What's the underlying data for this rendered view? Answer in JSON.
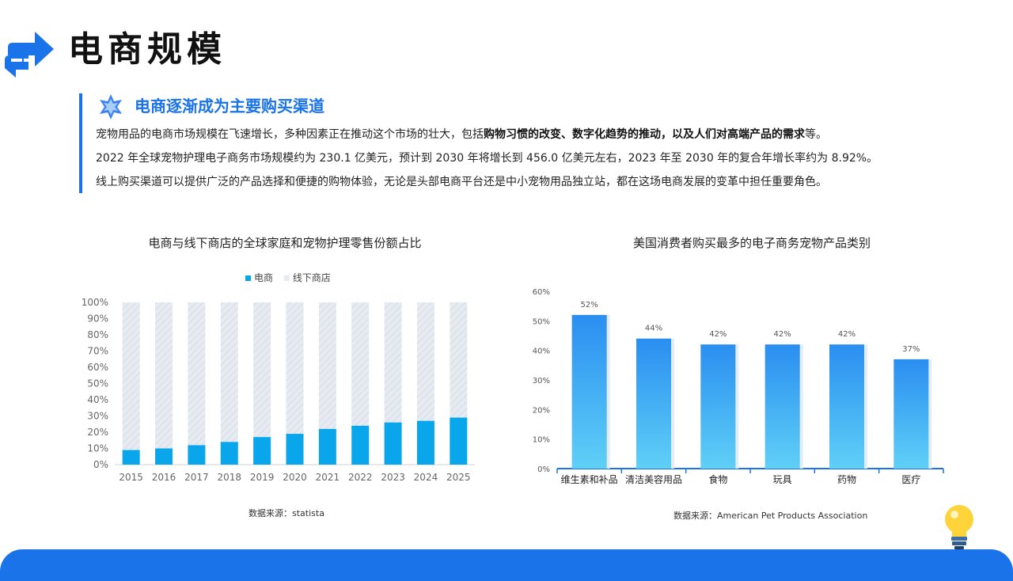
{
  "header": {
    "title": "电商规模"
  },
  "section": {
    "heading": "电商逐渐成为主要购买渠道",
    "p1_pre": "宠物用品的电商市场规模在飞速增长，多种因素正在推动这个市场的壮大，包括",
    "p1_bold": "购物习惯的改变、数字化趋势的推动，以及人们对高端产品的需求",
    "p1_post": "等。",
    "p2": "2022 年全球宠物护理电子商务市场规模约为 230.1 亿美元，预计到 2030 年将增长到 456.0 亿美元左右，2023 年至 2030 年的复合年增长率约为 8.92%。",
    "p3": "线上购买渠道可以提供广泛的产品选择和便捷的购物体验，无论是头部电商平台还是中小宠物用品独立站，都在这场电商发展的变革中担任重要角色。"
  },
  "colors": {
    "accent": "#1a73e8",
    "ecommerce": "#0aa6ec",
    "offline": "#e6ebf2",
    "bar_top": "#2a8ef0",
    "bar_bottom": "#5fd0f7"
  },
  "chart_data": [
    {
      "type": "bar",
      "stacked": true,
      "title": "电商与线下商店的全球家庭和宠物护理零售份额占比",
      "categories": [
        "2015",
        "2016",
        "2017",
        "2018",
        "2019",
        "2020",
        "2021",
        "2022",
        "2023",
        "2024",
        "2025"
      ],
      "series": [
        {
          "name": "电商",
          "values": [
            9,
            10,
            12,
            14,
            17,
            19,
            22,
            24,
            26,
            27,
            29
          ]
        },
        {
          "name": "线下商店",
          "values": [
            91,
            90,
            88,
            86,
            83,
            81,
            78,
            76,
            74,
            73,
            71
          ]
        }
      ],
      "ylim": [
        0,
        100
      ],
      "yticks": [
        "0%",
        "10%",
        "20%",
        "30%",
        "40%",
        "50%",
        "60%",
        "70%",
        "80%",
        "90%",
        "100%"
      ],
      "legend": "top",
      "grid": false,
      "source": "数据来源：statista"
    },
    {
      "type": "bar",
      "title": "美国消费者购买最多的电子商务宠物产品类别",
      "categories": [
        "维生素和补品",
        "清洁美容用品",
        "食物",
        "玩具",
        "药物",
        "医疗"
      ],
      "values": [
        52,
        44,
        42,
        42,
        42,
        37
      ],
      "labels": [
        "52%",
        "44%",
        "42%",
        "42%",
        "42%",
        "37%"
      ],
      "ylim": [
        0,
        60
      ],
      "yticks": [
        "0%",
        "10%",
        "20%",
        "30%",
        "40%",
        "50%",
        "60%"
      ],
      "grid": false,
      "source": "数据来源：American Pet Products Association"
    }
  ]
}
